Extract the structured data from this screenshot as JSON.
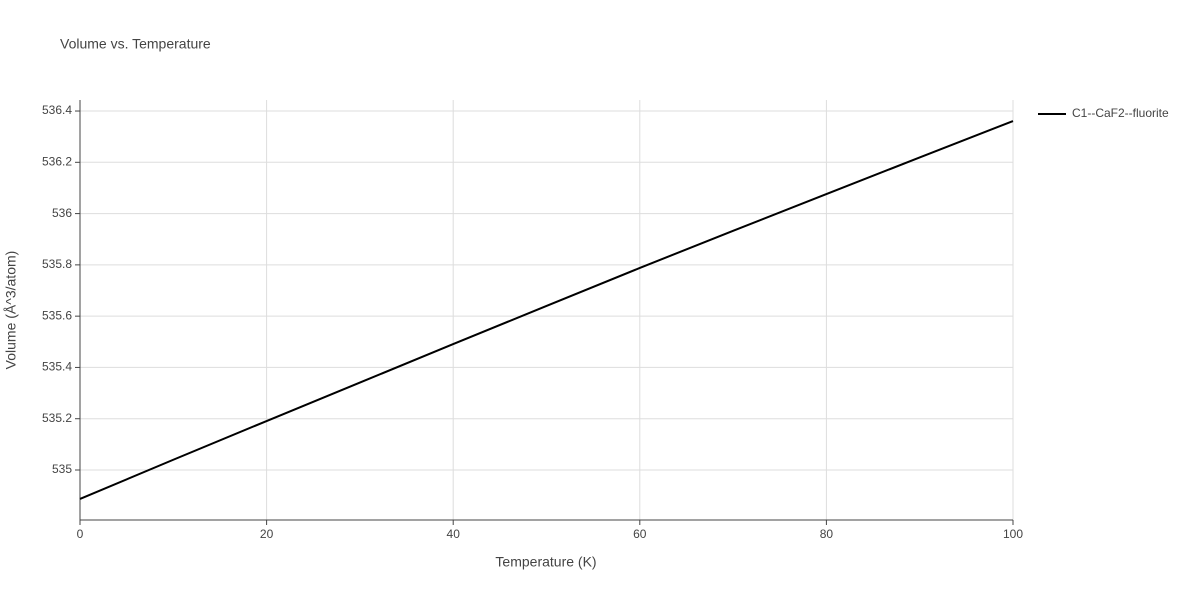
{
  "chart_data": {
    "type": "line",
    "title": "Volume vs. Temperature",
    "x_label": "Temperature (K)",
    "y_label": "Volume (Å^3/atom)",
    "x": [
      0,
      10,
      20,
      30,
      40,
      50,
      60,
      70,
      80,
      90,
      100
    ],
    "series": [
      {
        "name": "C1--CaF2--fluorite",
        "color": "#000000",
        "values": [
          534.887,
          535.04,
          535.191,
          535.341,
          535.491,
          535.64,
          535.788,
          535.933,
          536.076,
          536.219,
          536.361
        ]
      }
    ],
    "xlim": [
      0,
      100
    ],
    "xticks": [
      0,
      20,
      40,
      60,
      80,
      100
    ],
    "ylim": [
      534.805,
      536.443
    ],
    "yticks": [
      535,
      535.2,
      535.4,
      535.6,
      535.8,
      536,
      536.2,
      536.4
    ],
    "grid": true,
    "legend": "top-right"
  }
}
